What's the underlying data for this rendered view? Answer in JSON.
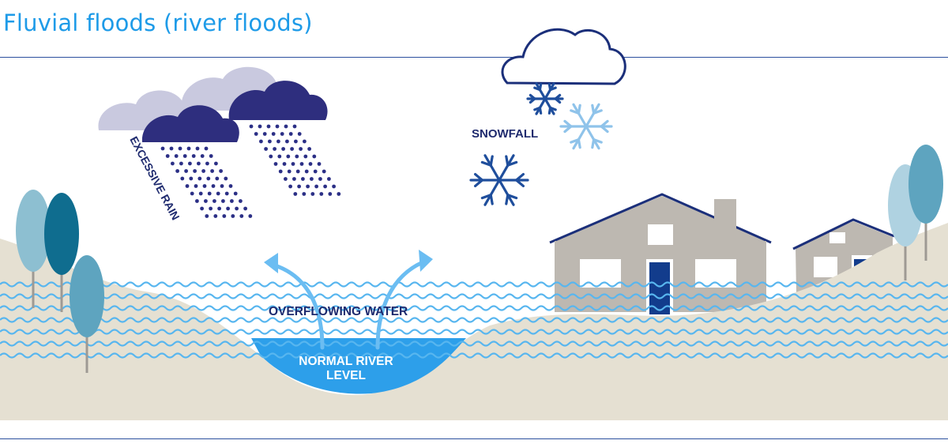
{
  "title": "Fluvial floods (river floods)",
  "labels": {
    "rain": "EXCESSIVE RAIN",
    "snow": "SNOWFALL",
    "overflow": "OVERFLOWING WATER",
    "river_line1": "NORMAL RIVER",
    "river_line2": "LEVEL"
  },
  "colors": {
    "title": "#1e9be8",
    "rule": "#2b4f9e",
    "ground": "#e5e0d2",
    "cloud_light": "#c9c9df",
    "cloud_dark": "#2e2e7e",
    "rain": "#2b2f86",
    "wave": "#58b6ef",
    "river": "#2d9fea",
    "house": "#bdb8b1",
    "door": "#123c8c",
    "arrow": "#6bbdf2",
    "tree_light": "#8dbfd1",
    "tree_dark": "#0f6d8f",
    "tree_mid": "#5ea4bf",
    "snow_dark": "#1f4e9c",
    "snow_light": "#8fc3ea"
  },
  "icons": [
    "cloud-icon",
    "snowflake-icon",
    "tree-icon",
    "house-icon",
    "arrow-icon"
  ]
}
